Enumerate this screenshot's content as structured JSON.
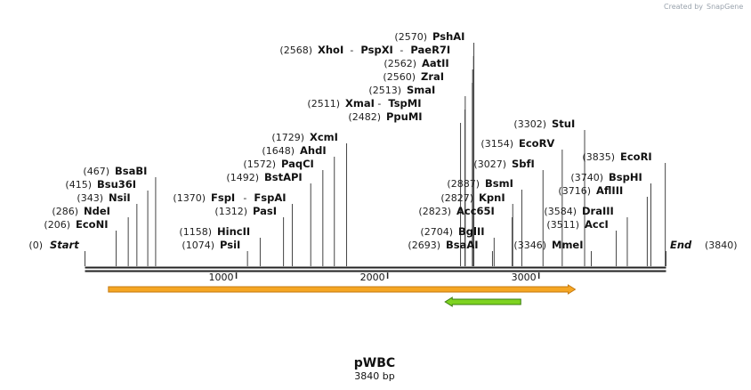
{
  "header": {
    "credit_prefix": "Created by",
    "credit_brand": "SnapGene"
  },
  "plasmid": {
    "name": "pWBC",
    "length_label": "3840 bp",
    "length": 3840
  },
  "ends": [
    {
      "pos_label": "(0)",
      "name": "Start",
      "bp": 0
    },
    {
      "pos_label": "(3840)",
      "name": "End",
      "bp": 3840
    }
  ],
  "ruler": {
    "ticks": [
      {
        "bp": 1000,
        "label": "1000"
      },
      {
        "bp": 2000,
        "label": "2000"
      },
      {
        "bp": 3000,
        "label": "3000"
      }
    ]
  },
  "sites": [
    {
      "id": "econi",
      "pos_label": "(206)",
      "names": [
        "EcoNI"
      ],
      "bp": 206
    },
    {
      "id": "ndei",
      "pos_label": "(286)",
      "names": [
        "NdeI"
      ],
      "bp": 286
    },
    {
      "id": "nsii",
      "pos_label": "(343)",
      "names": [
        "NsiI"
      ],
      "bp": 343
    },
    {
      "id": "bsu36i",
      "pos_label": "(415)",
      "names": [
        "Bsu36I"
      ],
      "bp": 415
    },
    {
      "id": "bsabi",
      "pos_label": "(467)",
      "names": [
        "BsaBI"
      ],
      "bp": 467
    },
    {
      "id": "psii",
      "pos_label": "(1074)",
      "names": [
        "PsiI"
      ],
      "bp": 1074
    },
    {
      "id": "hincii",
      "pos_label": "(1158)",
      "names": [
        "HincII"
      ],
      "bp": 1158
    },
    {
      "id": "pasi",
      "pos_label": "(1312)",
      "names": [
        "PasI"
      ],
      "bp": 1312
    },
    {
      "id": "fspi",
      "pos_label": "(1370)",
      "names": [
        "FspI",
        "FspAI"
      ],
      "bp": 1370
    },
    {
      "id": "bstapi",
      "pos_label": "(1492)",
      "names": [
        "BstAPI"
      ],
      "bp": 1492
    },
    {
      "id": "paqci",
      "pos_label": "(1572)",
      "names": [
        "PaqCI"
      ],
      "bp": 1572
    },
    {
      "id": "ahdi",
      "pos_label": "(1648)",
      "names": [
        "AhdI"
      ],
      "bp": 1648
    },
    {
      "id": "xcmi",
      "pos_label": "(1729)",
      "names": [
        "XcmI"
      ],
      "bp": 1729
    },
    {
      "id": "ppumi",
      "pos_label": "(2482)",
      "names": [
        "PpuMI"
      ],
      "bp": 2482
    },
    {
      "id": "xmai",
      "pos_label": "(2511)",
      "names": [
        "XmaI",
        "TspMI"
      ],
      "bp": 2511
    },
    {
      "id": "smai",
      "pos_label": "(2513)",
      "names": [
        "SmaI"
      ],
      "bp": 2513
    },
    {
      "id": "zrai",
      "pos_label": "(2560)",
      "names": [
        "ZraI"
      ],
      "bp": 2560
    },
    {
      "id": "aatii",
      "pos_label": "(2562)",
      "names": [
        "AatII"
      ],
      "bp": 2562
    },
    {
      "id": "xhoi",
      "pos_label": "(2568)",
      "names": [
        "XhoI",
        "PspXI",
        "PaeR7I"
      ],
      "bp": 2568
    },
    {
      "id": "pshai",
      "pos_label": "(2570)",
      "names": [
        "PshAI"
      ],
      "bp": 2570
    },
    {
      "id": "bsaai",
      "pos_label": "(2693)",
      "names": [
        "BsaAI"
      ],
      "bp": 2693
    },
    {
      "id": "bglii",
      "pos_label": "(2704)",
      "names": [
        "BglII"
      ],
      "bp": 2704
    },
    {
      "id": "acc65i",
      "pos_label": "(2823)",
      "names": [
        "Acc65I"
      ],
      "bp": 2823
    },
    {
      "id": "kpni",
      "pos_label": "(2827)",
      "names": [
        "KpnI"
      ],
      "bp": 2827
    },
    {
      "id": "bsmi",
      "pos_label": "(2887)",
      "names": [
        "BsmI"
      ],
      "bp": 2887
    },
    {
      "id": "sbfi",
      "pos_label": "(3027)",
      "names": [
        "SbfI"
      ],
      "bp": 3027
    },
    {
      "id": "ecorv",
      "pos_label": "(3154)",
      "names": [
        "EcoRV"
      ],
      "bp": 3154
    },
    {
      "id": "stui",
      "pos_label": "(3302)",
      "names": [
        "StuI"
      ],
      "bp": 3302
    },
    {
      "id": "mmei",
      "pos_label": "(3346)",
      "names": [
        "MmeI"
      ],
      "bp": 3346
    },
    {
      "id": "acci",
      "pos_label": "(3511)",
      "names": [
        "AccI"
      ],
      "bp": 3511
    },
    {
      "id": "draiii",
      "pos_label": "(3584)",
      "names": [
        "DraIII"
      ],
      "bp": 3584
    },
    {
      "id": "aflii",
      "pos_label": "(3716)",
      "names": [
        "AflIII"
      ],
      "bp": 3716
    },
    {
      "id": "bsphi",
      "pos_label": "(3740)",
      "names": [
        "BspHI"
      ],
      "bp": 3740
    },
    {
      "id": "ecori",
      "pos_label": "(3835)",
      "names": [
        "EcoRI"
      ],
      "bp": 3835
    }
  ],
  "features": [
    {
      "id": "feature-orange",
      "color": "#f5a623",
      "border": "#c47a12",
      "direction": "forward",
      "start_bp": 155,
      "end_bp": 3240
    },
    {
      "id": "feature-green",
      "color": "#7ed321",
      "border": "#3b7d0e",
      "direction": "reverse",
      "start_bp": 2380,
      "end_bp": 2880
    }
  ]
}
